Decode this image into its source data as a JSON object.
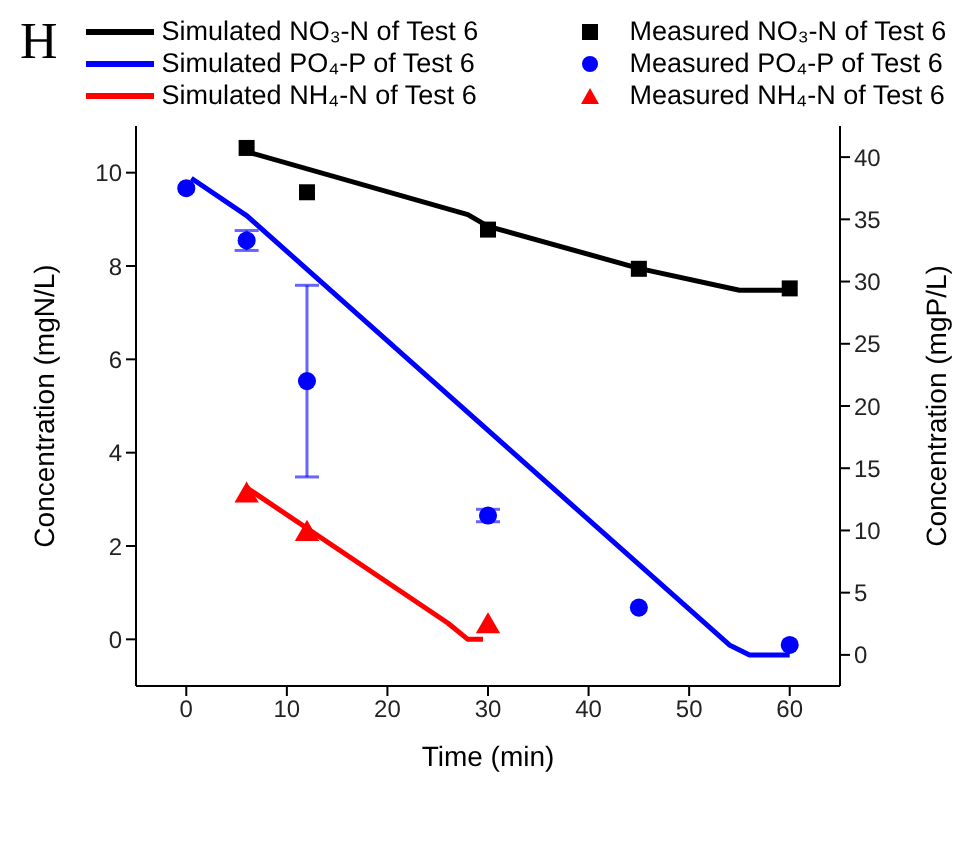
{
  "chart_data": {
    "type": "line",
    "title": "H",
    "xlabel": "Time (min)",
    "ylabel": "Concentration (mgN/L)",
    "y2label": "Concentration (mgP/L)",
    "xlim": [
      -5,
      65
    ],
    "xticks": [
      0,
      10,
      20,
      30,
      40,
      50,
      60
    ],
    "ylim": [
      -1,
      11
    ],
    "yticks": [
      0,
      2,
      4,
      6,
      8,
      10
    ],
    "y2lim": [
      -2.5,
      42.5
    ],
    "y2ticks": [
      0,
      5,
      10,
      15,
      20,
      25,
      30,
      35,
      40
    ],
    "legend": "top",
    "grid": false,
    "series": [
      {
        "name": "Simulated NO₃-N of Test 6",
        "color": "#000000",
        "x": [
          6,
          28,
          30,
          45,
          55,
          60
        ],
        "values": [
          10.45,
          9.1,
          8.85,
          7.95,
          7.48,
          7.48
        ]
      },
      {
        "name": "Measured NO₃-N of Test 6",
        "type": "scatter",
        "marker": "square",
        "color": "#000000",
        "x": [
          6,
          12,
          30,
          45,
          60
        ],
        "values": [
          10.53,
          9.58,
          8.78,
          7.94,
          7.52
        ]
      },
      {
        "name": "Simulated PO₄-P of Test 6",
        "axis": "y2",
        "color": "#0000ff",
        "x": [
          0.5,
          6,
          54,
          56,
          60
        ],
        "values": [
          38.3,
          35.3,
          0.8,
          0,
          0
        ]
      },
      {
        "name": "Measured PO₄-P of Test 6",
        "type": "scatter",
        "marker": "circle",
        "axis": "y2",
        "color": "#0000ff",
        "x": [
          0,
          6,
          12,
          30,
          45,
          60
        ],
        "values": [
          37.5,
          33.3,
          22.0,
          11.2,
          3.8,
          0.8
        ],
        "errors": [
          null,
          0.8,
          7.7,
          0.5,
          null,
          null
        ]
      },
      {
        "name": "Simulated NH₄-N of Test 6",
        "color": "#ff0000",
        "x": [
          6,
          26,
          28,
          29.5
        ],
        "values": [
          3.25,
          0.35,
          0,
          0
        ]
      },
      {
        "name": "Measured NH₄-N of Test 6",
        "type": "scatter",
        "marker": "triangle",
        "color": "#ff0000",
        "x": [
          6,
          12,
          30
        ],
        "values": [
          3.08,
          2.26,
          0.28
        ]
      }
    ]
  }
}
